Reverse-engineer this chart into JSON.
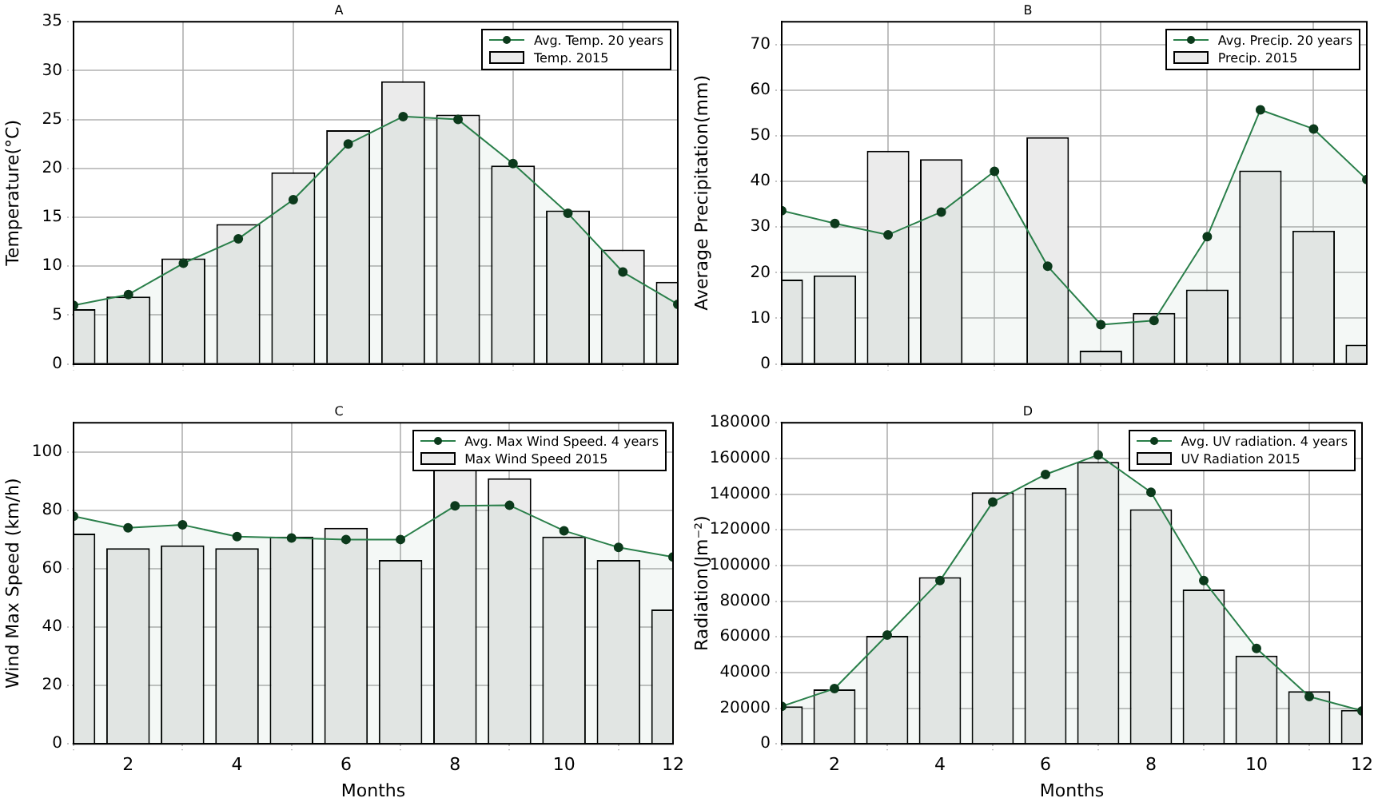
{
  "chart_data": [
    {
      "type": "bar",
      "title": "A",
      "ylabel": "Temperature(°C)",
      "x": [
        1,
        2,
        3,
        4,
        5,
        6,
        7,
        8,
        9,
        10,
        11,
        12
      ],
      "xlim": [
        1,
        12
      ],
      "xticks": [
        2,
        4,
        6,
        8,
        10,
        12
      ],
      "ylim": [
        0,
        35
      ],
      "yticks": [
        0,
        5,
        10,
        15,
        20,
        25,
        30,
        35
      ],
      "grid": true,
      "legend": "top right",
      "tick_labels": "y",
      "marker": "circle",
      "series": [
        {
          "name": "Avg. Temp. 20 years",
          "type": "area",
          "color": "#2a7f4a",
          "values": [
            6.0,
            7.1,
            10.3,
            12.8,
            16.8,
            22.5,
            25.3,
            25.0,
            20.5,
            15.4,
            9.4,
            6.1
          ]
        },
        {
          "name": "Temp. 2015",
          "color": "#ebebeb",
          "values": [
            5.6,
            6.9,
            10.8,
            14.3,
            19.6,
            23.9,
            28.9,
            25.5,
            20.3,
            15.7,
            11.7,
            8.4
          ]
        }
      ]
    },
    {
      "type": "bar",
      "title": "B",
      "ylabel": "Average Precipitation(mm)",
      "x": [
        1,
        2,
        3,
        4,
        5,
        6,
        7,
        8,
        9,
        10,
        11,
        12
      ],
      "xlim": [
        1,
        12
      ],
      "xticks": [
        2,
        4,
        6,
        8,
        10,
        12
      ],
      "ylim": [
        0,
        75
      ],
      "yticks": [
        0,
        10,
        20,
        30,
        40,
        50,
        60,
        70
      ],
      "grid": true,
      "legend": "top right",
      "tick_labels": "y",
      "marker": "circle",
      "series": [
        {
          "name": "Avg. Precip. 20 years",
          "type": "area",
          "color": "#2a7f4a",
          "values": [
            33.6,
            30.8,
            28.3,
            33.3,
            42.2,
            21.4,
            8.6,
            9.5,
            27.9,
            55.7,
            51.5,
            40.4
          ]
        },
        {
          "name": "Precip. 2015",
          "color": "#ebebeb",
          "values": [
            18.5,
            19.4,
            46.7,
            44.9,
            0,
            49.7,
            2.9,
            11.2,
            16.3,
            42.4,
            29.2,
            4.2
          ]
        }
      ]
    },
    {
      "type": "bar",
      "title": "C",
      "xlabel": "Months",
      "ylabel": "Wind Max Speed (km/h)",
      "x": [
        1,
        2,
        3,
        4,
        5,
        6,
        7,
        8,
        9,
        10,
        11,
        12
      ],
      "xlim": [
        1,
        12
      ],
      "xticks": [
        2,
        4,
        6,
        8,
        10,
        12
      ],
      "ylim": [
        0,
        110
      ],
      "yticks": [
        0,
        20,
        40,
        60,
        80,
        100
      ],
      "grid": true,
      "legend": "top right",
      "marker": "circle",
      "series": [
        {
          "name": "Avg. Max Wind Speed. 4 years",
          "type": "area",
          "color": "#2a7f4a",
          "values": [
            78,
            74,
            75,
            71,
            70.5,
            70,
            70,
            81.5,
            81.7,
            73,
            67.3,
            64
          ]
        },
        {
          "name": "Max Wind Speed 2015",
          "color": "#ebebeb",
          "values": [
            72,
            67,
            68,
            67,
            71,
            74,
            63,
            100,
            91,
            71,
            63,
            46
          ]
        }
      ]
    },
    {
      "type": "bar",
      "title": "D",
      "xlabel": "Months",
      "ylabel": "Radiation(Jm⁻²)",
      "x": [
        1,
        2,
        3,
        4,
        5,
        6,
        7,
        8,
        9,
        10,
        11,
        12
      ],
      "xlim": [
        1,
        12
      ],
      "xticks": [
        2,
        4,
        6,
        8,
        10,
        12
      ],
      "ylim": [
        0,
        180000
      ],
      "yticks": [
        0,
        20000,
        40000,
        60000,
        80000,
        100000,
        120000,
        140000,
        160000,
        180000
      ],
      "grid": true,
      "legend": "top right",
      "marker": "circle",
      "series": [
        {
          "name": "Avg. UV radiation. 4 years",
          "type": "area",
          "color": "#2a7f4a",
          "values": [
            21000,
            31000,
            61000,
            91500,
            135500,
            151000,
            162000,
            141000,
            91500,
            53500,
            26500,
            18500
          ]
        },
        {
          "name": "UV Radiation 2015",
          "color": "#ebebeb",
          "values": [
            21000,
            30500,
            60500,
            93500,
            141000,
            143500,
            158000,
            131500,
            86500,
            49500,
            29500,
            19000
          ]
        }
      ]
    }
  ]
}
